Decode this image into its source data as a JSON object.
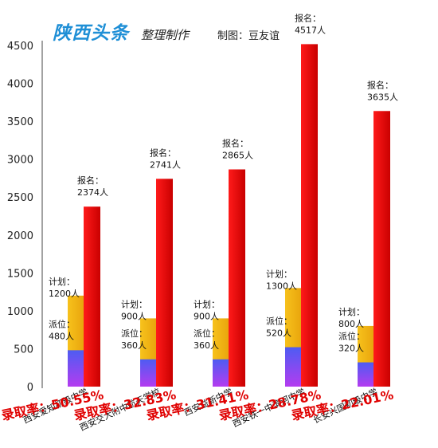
{
  "header": {
    "brand": "陕西头条",
    "subtitle": "整理制作",
    "credit": "制图：豆友谊"
  },
  "colors": {
    "report": "#e30000",
    "plan": "#f3ae16",
    "quota": "#5a4df0",
    "rate": "#e00000"
  },
  "chart_data": {
    "type": "bar",
    "ylim": [
      0,
      4500
    ],
    "yticks": [
      0,
      500,
      1000,
      1500,
      2000,
      2500,
      3000,
      3500,
      4000,
      4500
    ],
    "grid": false,
    "categories": [
      "西安爱知初级中学",
      "西安交大附中航天学校",
      "西安益新中学",
      "西安铁一中滨河中学",
      "长安兴国初级中学"
    ],
    "series": [
      {
        "name": "派位",
        "values": [
          480,
          360,
          360,
          520,
          320
        ]
      },
      {
        "name": "计划",
        "values": [
          1200,
          900,
          900,
          1300,
          800
        ]
      },
      {
        "name": "报名",
        "values": [
          2374,
          2741,
          2865,
          4517,
          3635
        ]
      }
    ],
    "annotations": [
      {
        "report_label": "报名：",
        "report_value": "2374人",
        "plan_label": "计划：",
        "plan_value": "1200人",
        "quota_label": "派位：",
        "quota_value": "480人",
        "rate": "录取率：50.55%"
      },
      {
        "report_label": "报名：",
        "report_value": "2741人",
        "plan_label": "计划：",
        "plan_value": "900人",
        "quota_label": "派位：",
        "quota_value": "360人",
        "rate": "录取率：32.83%"
      },
      {
        "report_label": "报名：",
        "report_value": "2865人",
        "plan_label": "计划：",
        "plan_value": "900人",
        "quota_label": "派位：",
        "quota_value": "360人",
        "rate": "录取率：31.41%"
      },
      {
        "report_label": "报名：",
        "report_value": "4517人",
        "plan_label": "计划：",
        "plan_value": "1300人",
        "quota_label": "派位：",
        "quota_value": "520人",
        "rate": "录取率：28.78%"
      },
      {
        "report_label": "报名：",
        "report_value": "3635人",
        "plan_label": "计划：",
        "plan_value": "800人",
        "quota_label": "派位：",
        "quota_value": "320人",
        "rate": "录取率：22.01%"
      }
    ]
  }
}
